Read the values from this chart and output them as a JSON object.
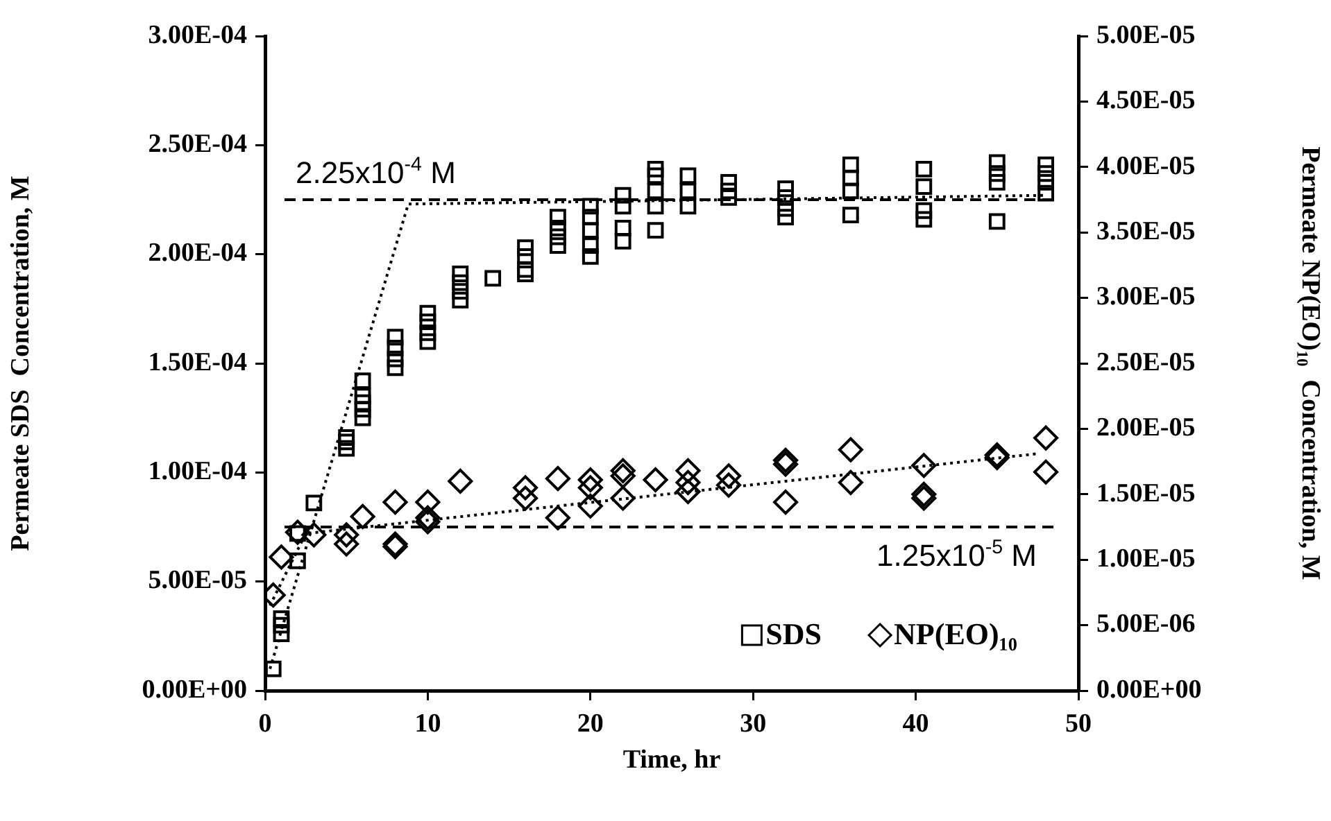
{
  "chart_data": {
    "type": "scatter",
    "xlabel": "Time, hr",
    "ylabel": "Permeate SDS  Concentration, M",
    "y2label": "Permeate NP(EO)₁₀  Concentration, M",
    "xlim": [
      0,
      50
    ],
    "xticks": [
      0,
      10,
      20,
      30,
      40,
      50
    ],
    "ylim": [
      0,
      0.0003
    ],
    "yticks": [
      {
        "value": 0,
        "label": "0.00E+00"
      },
      {
        "value": 5e-05,
        "label": "5.00E-05"
      },
      {
        "value": 0.0001,
        "label": "1.00E-04"
      },
      {
        "value": 0.00015,
        "label": "1.50E-04"
      },
      {
        "value": 0.0002,
        "label": "2.00E-04"
      },
      {
        "value": 0.00025,
        "label": "2.50E-04"
      },
      {
        "value": 0.0003,
        "label": "3.00E-04"
      }
    ],
    "y2lim": [
      0,
      5e-05
    ],
    "y2ticks": [
      {
        "value": 0,
        "label": "0.00E+00"
      },
      {
        "value": 5e-06,
        "label": "5.00E-06"
      },
      {
        "value": 1e-05,
        "label": "1.00E-05"
      },
      {
        "value": 1.5e-05,
        "label": "1.50E-05"
      },
      {
        "value": 2e-05,
        "label": "2.00E-05"
      },
      {
        "value": 2.5e-05,
        "label": "2.50E-05"
      },
      {
        "value": 3e-05,
        "label": "3.00E-05"
      },
      {
        "value": 3.5e-05,
        "label": "3.50E-05"
      },
      {
        "value": 4e-05,
        "label": "4.00E-05"
      },
      {
        "value": 4.5e-05,
        "label": "4.50E-05"
      },
      {
        "value": 5e-05,
        "label": "5.00E-05"
      }
    ],
    "grid": false,
    "legend": "bottom right",
    "series": [
      {
        "name": "SDS",
        "type": "scatter",
        "marker": "square",
        "color": "#000000",
        "x": [
          0.5,
          1,
          1,
          1,
          2,
          2,
          3,
          5,
          5,
          5,
          6,
          6,
          6,
          6,
          6,
          8,
          8,
          8,
          8,
          10,
          10,
          10,
          10,
          12,
          12,
          12,
          12,
          14,
          16,
          16,
          16,
          16,
          18,
          18,
          18,
          18,
          20,
          20,
          20,
          20,
          20,
          22,
          22,
          22,
          22,
          24,
          24,
          24,
          24,
          24,
          26,
          26,
          26,
          28.5,
          28.5,
          28.5,
          32,
          32,
          32,
          32,
          36,
          36,
          36,
          36,
          40.5,
          40.5,
          40.5,
          40.5,
          45,
          45,
          45,
          45,
          48,
          48,
          48,
          48
        ],
        "values": [
          1e-05,
          3.3e-05,
          3e-05,
          2.6e-05,
          5.95e-05,
          7.2e-05,
          8.6e-05,
          0.000114,
          0.000111,
          0.000116,
          0.000142,
          0.000135,
          0.000132,
          0.000129,
          0.000125,
          0.000162,
          0.000157,
          0.000152,
          0.000148,
          0.000173,
          0.000169,
          0.000164,
          0.00016,
          0.000191,
          0.000187,
          0.000183,
          0.000179,
          0.000189,
          0.000203,
          0.000199,
          0.000193,
          0.000191,
          0.000217,
          0.000212,
          0.000208,
          0.000204,
          0.000222,
          0.000217,
          0.000211,
          0.000204,
          0.000199,
          0.000227,
          0.000222,
          0.000212,
          0.000206,
          0.000239,
          0.000236,
          0.000229,
          0.000222,
          0.000211,
          0.000236,
          0.000229,
          0.000222,
          0.000233,
          0.000229,
          0.000226,
          0.00023,
          0.000226,
          0.000221,
          0.000217,
          0.000241,
          0.000235,
          0.000229,
          0.000218,
          0.000239,
          0.000231,
          0.00022,
          0.000216,
          0.000242,
          0.000237,
          0.000233,
          0.000215,
          0.000241,
          0.000237,
          0.000233,
          0.000228
        ]
      },
      {
        "name": "NP(EO)₁₀",
        "type": "scatter",
        "marker": "diamond",
        "axis": "y2",
        "color": "#000000",
        "x": [
          0.5,
          1,
          2,
          3,
          5,
          5,
          6,
          8,
          8,
          8,
          10,
          10,
          10,
          12,
          16,
          16,
          18,
          18,
          20,
          20,
          20,
          22,
          22,
          22,
          24,
          26,
          26,
          26,
          28.5,
          28.5,
          32,
          32,
          32,
          36,
          36,
          40.5,
          40.5,
          40.5,
          45,
          45,
          48,
          48
        ],
        "values": [
          7.3e-06,
          1.02e-05,
          1.21e-05,
          1.19e-05,
          1.19e-05,
          1.12e-05,
          1.33e-05,
          1.44e-05,
          1.12e-05,
          1.1e-05,
          1.44e-05,
          1.32e-05,
          1.29e-05,
          1.6e-05,
          1.55e-05,
          1.47e-05,
          1.62e-05,
          1.32e-05,
          1.61e-05,
          1.55e-05,
          1.41e-05,
          1.68e-05,
          1.64e-05,
          1.47e-05,
          1.61e-05,
          1.68e-05,
          1.59e-05,
          1.52e-05,
          1.64e-05,
          1.57e-05,
          1.76e-05,
          1.73e-05,
          1.44e-05,
          1.84e-05,
          1.59e-05,
          1.72e-05,
          1.5e-05,
          1.47e-05,
          1.8e-05,
          1.78e-05,
          1.93e-05,
          1.67e-05
        ]
      },
      {
        "type": "line",
        "marker": "none",
        "line_style": "dotted",
        "color": "#000000",
        "x": [
          0.3,
          8.8,
          48
        ],
        "values": [
          1e-05,
          0.000223,
          0.000227
        ]
      },
      {
        "type": "line",
        "marker": "none",
        "line_style": "dotted",
        "axis": "y2",
        "color": "#000000",
        "x": [
          0.3,
          2.5,
          47.5
        ],
        "values": [
          6.5e-06,
          1.2e-05,
          1.81e-05
        ]
      }
    ],
    "ref_lines": [
      {
        "axis": "y",
        "value": 0.000225,
        "label": "2.25x10$^{-4}$ M",
        "line_style": "dashed",
        "color": "#000000"
      },
      {
        "axis": "y2",
        "value": 1.25e-05,
        "label": "1.25x10$^{-5}$ M",
        "line_style": "dashed",
        "color": "#000000"
      }
    ]
  }
}
